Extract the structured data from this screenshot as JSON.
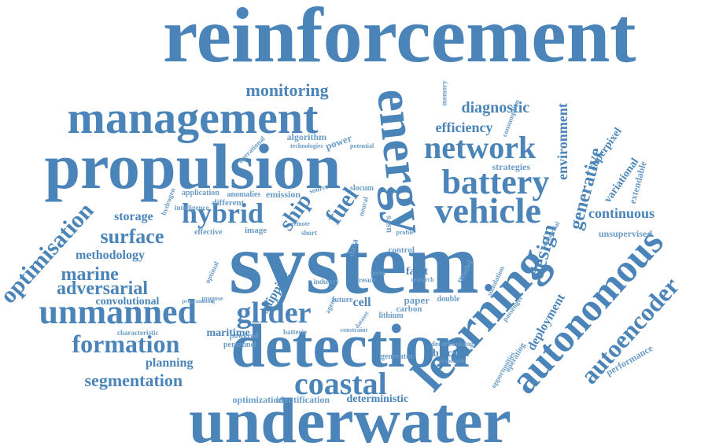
{
  "colors": {
    "word": "#4a84b8",
    "word_light": "#6a9cc8",
    "background": "#ffffff"
  },
  "words": [
    "reinforcement",
    "system",
    "underwater",
    "detection",
    "propulsion",
    "management",
    "learning",
    "energy",
    "autonomous",
    "vehicle",
    "battery",
    "network",
    "unmanned",
    "glider",
    "hybrid",
    "coastal",
    "autoencoder",
    "formation",
    "optimisation",
    "surface",
    "design",
    "marine",
    "adversarial",
    "generative",
    "segmentation",
    "monitoring",
    "fuel",
    "ship",
    "continuous",
    "diagnostic",
    "efficiency",
    "environment",
    "superpixel",
    "variational",
    "extendable",
    "methodology",
    "storage",
    "planning",
    "convolutional",
    "maritime",
    "objective",
    "deterministic",
    "optimization",
    "identification",
    "deployment",
    "shipping",
    "fault",
    "cell",
    "unsupervised",
    "performance",
    "strategies",
    "power",
    "algorithm",
    "emission",
    "different",
    "application",
    "anomalies",
    "intelligence",
    "hydrogen",
    "image",
    "effective",
    "personnel",
    "characteristic",
    "powered",
    "batterie",
    "generator",
    "decarbonising",
    "passenger",
    "operating",
    "opportunities",
    "paper",
    "double",
    "carbon",
    "lithium",
    "future",
    "industry",
    "model",
    "control",
    "usvs",
    "data",
    "agent",
    "slocum",
    "memory",
    "consumption",
    "commercial",
    "technologies",
    "operational",
    "short",
    "remote",
    "source",
    "neural",
    "potential",
    "simulation",
    "propose",
    "programming",
    "optimal",
    "term",
    "result",
    "research",
    "profile",
    "dataset",
    "constraint",
    "proposition"
  ]
}
